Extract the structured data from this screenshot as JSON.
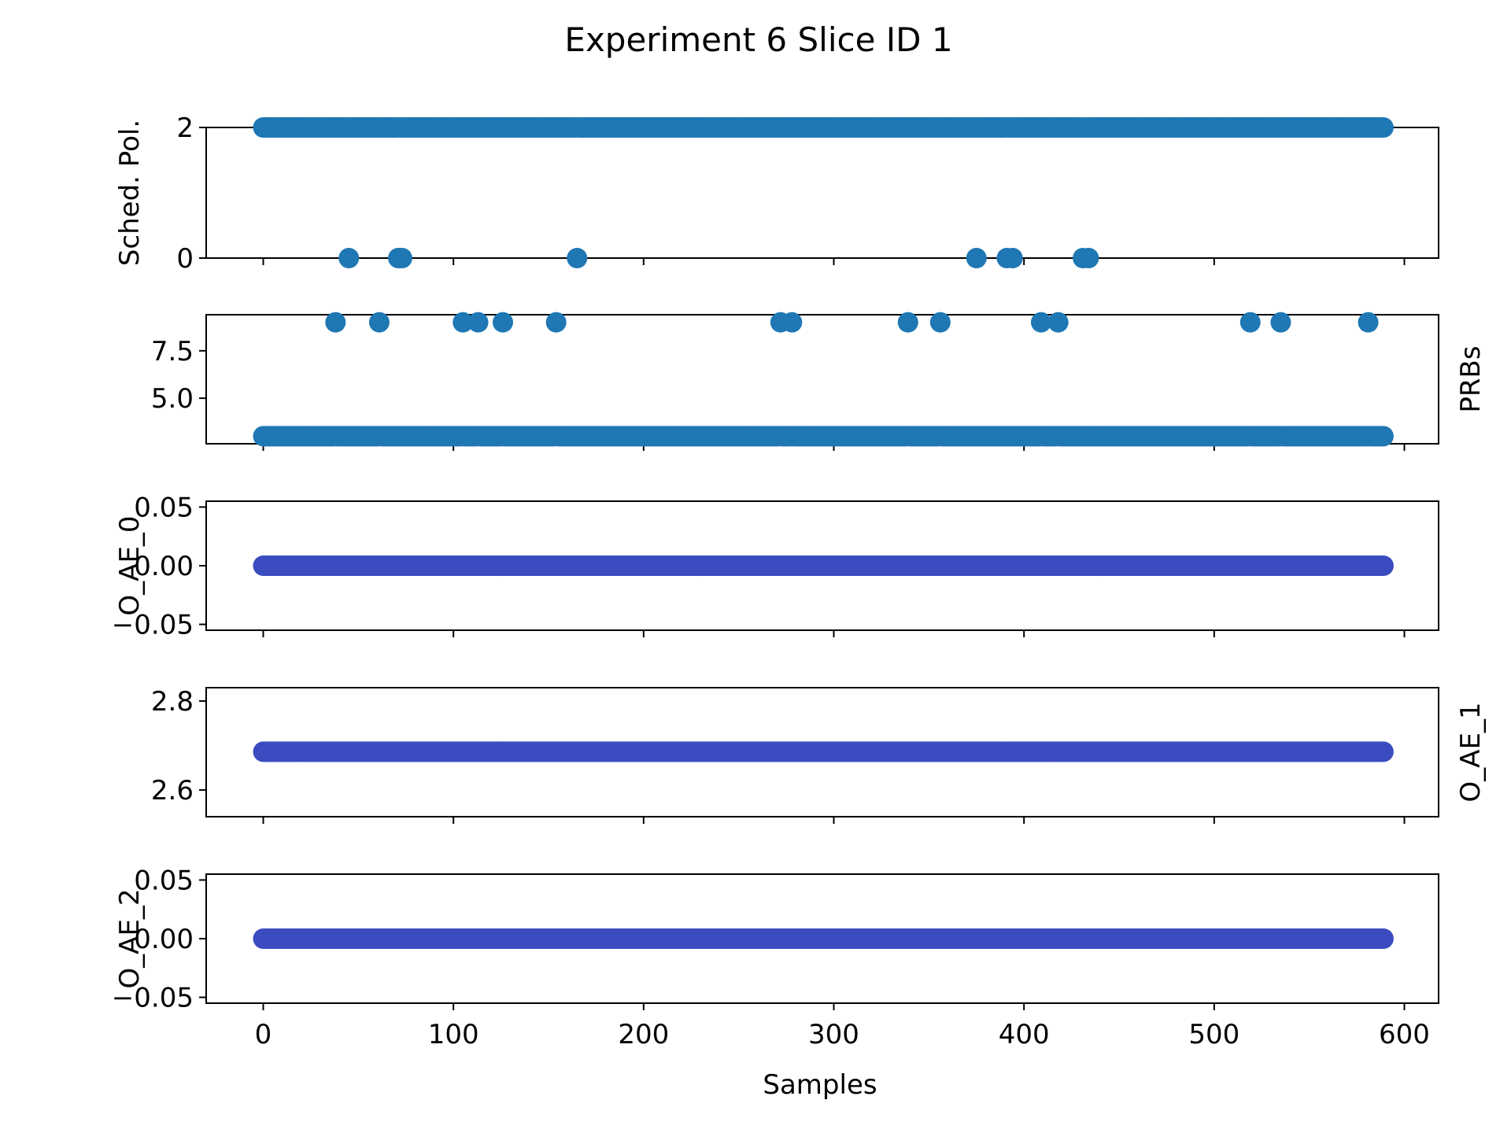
{
  "chart_data": {
    "type": "scatter",
    "title": "Experiment 6 Slice ID 1",
    "xlabel": "Samples",
    "xlim": [
      -30,
      618
    ],
    "xticks": [
      0,
      100,
      200,
      300,
      400,
      500,
      600
    ],
    "xticklabels": [
      "0",
      "100",
      "200",
      "300",
      "400",
      "500",
      "600"
    ],
    "n_samples": 590,
    "grid": false,
    "subplots": [
      {
        "ylabel": "Sched. Pol.",
        "ylabel_side": "left",
        "ylim": [
          0,
          2
        ],
        "yticks": [
          0,
          2
        ],
        "yticklabels": [
          "0",
          "2"
        ],
        "color": "#1f77b4",
        "baseline": 2,
        "outliers": {
          "value": 0,
          "x": [
            45,
            71,
            73,
            165,
            375,
            391,
            394,
            431,
            434
          ]
        }
      },
      {
        "ylabel": "PRBs",
        "ylabel_side": "right",
        "ylim": [
          2.6,
          9.4
        ],
        "yticks": [
          5.0,
          7.5
        ],
        "yticklabels": [
          "5.0",
          "7.5"
        ],
        "color": "#1f77b4",
        "baseline": 3,
        "outliers": {
          "value": 9,
          "x": [
            38,
            61,
            105,
            113,
            126,
            154,
            272,
            278,
            339,
            356,
            409,
            418,
            519,
            535,
            581
          ]
        }
      },
      {
        "ylabel": "O_AE_0",
        "ylabel_side": "left",
        "ylim": [
          -0.055,
          0.055
        ],
        "yticks": [
          -0.05,
          0.0,
          0.05
        ],
        "yticklabels": [
          "−0.05",
          "0.00",
          "0.05"
        ],
        "color": "#3b4cc0",
        "baseline": 0.0
      },
      {
        "ylabel": "O_AE_1",
        "ylabel_side": "right",
        "ylim": [
          2.54,
          2.83
        ],
        "yticks": [
          2.6,
          2.8
        ],
        "yticklabels": [
          "2.6",
          "2.8"
        ],
        "color": "#3b4cc0",
        "baseline": 2.686
      },
      {
        "ylabel": "O_AE_2",
        "ylabel_side": "left",
        "ylim": [
          -0.055,
          0.055
        ],
        "yticks": [
          -0.05,
          0.0,
          0.05
        ],
        "yticklabels": [
          "−0.05",
          "0.00",
          "0.05"
        ],
        "color": "#3b4cc0",
        "baseline": 0.0
      }
    ]
  }
}
